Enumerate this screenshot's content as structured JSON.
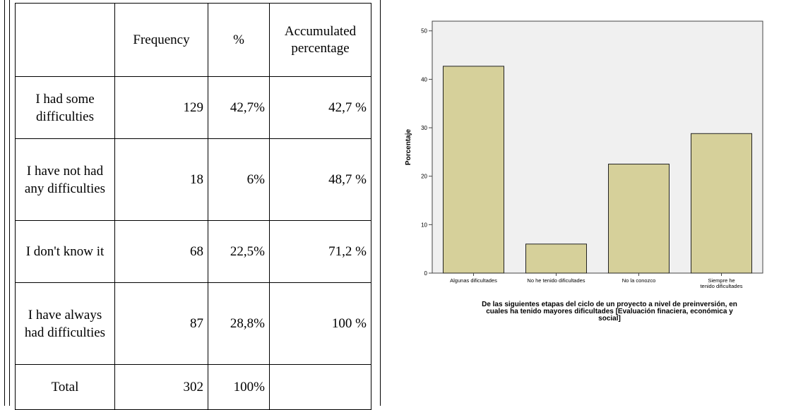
{
  "table": {
    "headers": [
      "",
      "Frequency",
      "%",
      "Accumulated percentage"
    ],
    "rows": [
      {
        "label": "I had some difficulties",
        "frequency": "129",
        "percent": "42,7%",
        "accumulated": "42,7 %"
      },
      {
        "label": "I have not had any difficulties",
        "frequency": "18",
        "percent": "6%",
        "accumulated": "48,7 %"
      },
      {
        "label": "I don't know it",
        "frequency": "68",
        "percent": "22,5%",
        "accumulated": "71,2 %"
      },
      {
        "label": "I have always had difficulties",
        "frequency": "87",
        "percent": "28,8%",
        "accumulated": "100 %"
      },
      {
        "label": "Total",
        "frequency": "302",
        "percent": "100%",
        "accumulated": ""
      }
    ]
  },
  "chart_data": {
    "type": "bar",
    "categories": [
      "Algunas dificultades",
      "No he tenido dificultades",
      "No la conozco",
      "Siempre he tenido dificultades"
    ],
    "values": [
      42.7,
      6.0,
      22.5,
      28.8
    ],
    "title": "",
    "xlabel": "De las siguientes etapas del ciclo de un proyecto a nivel de preinversión, en cuales ha tenido mayores dificultades [Evaluación finaciera, económica y social]",
    "ylabel": "Porcentaje",
    "ylim": [
      0,
      52
    ],
    "yticks": [
      0,
      10,
      20,
      30,
      40,
      50
    ],
    "grid": false,
    "bar_color": "#d6d09a",
    "plot_background": "#f0f0f0"
  }
}
